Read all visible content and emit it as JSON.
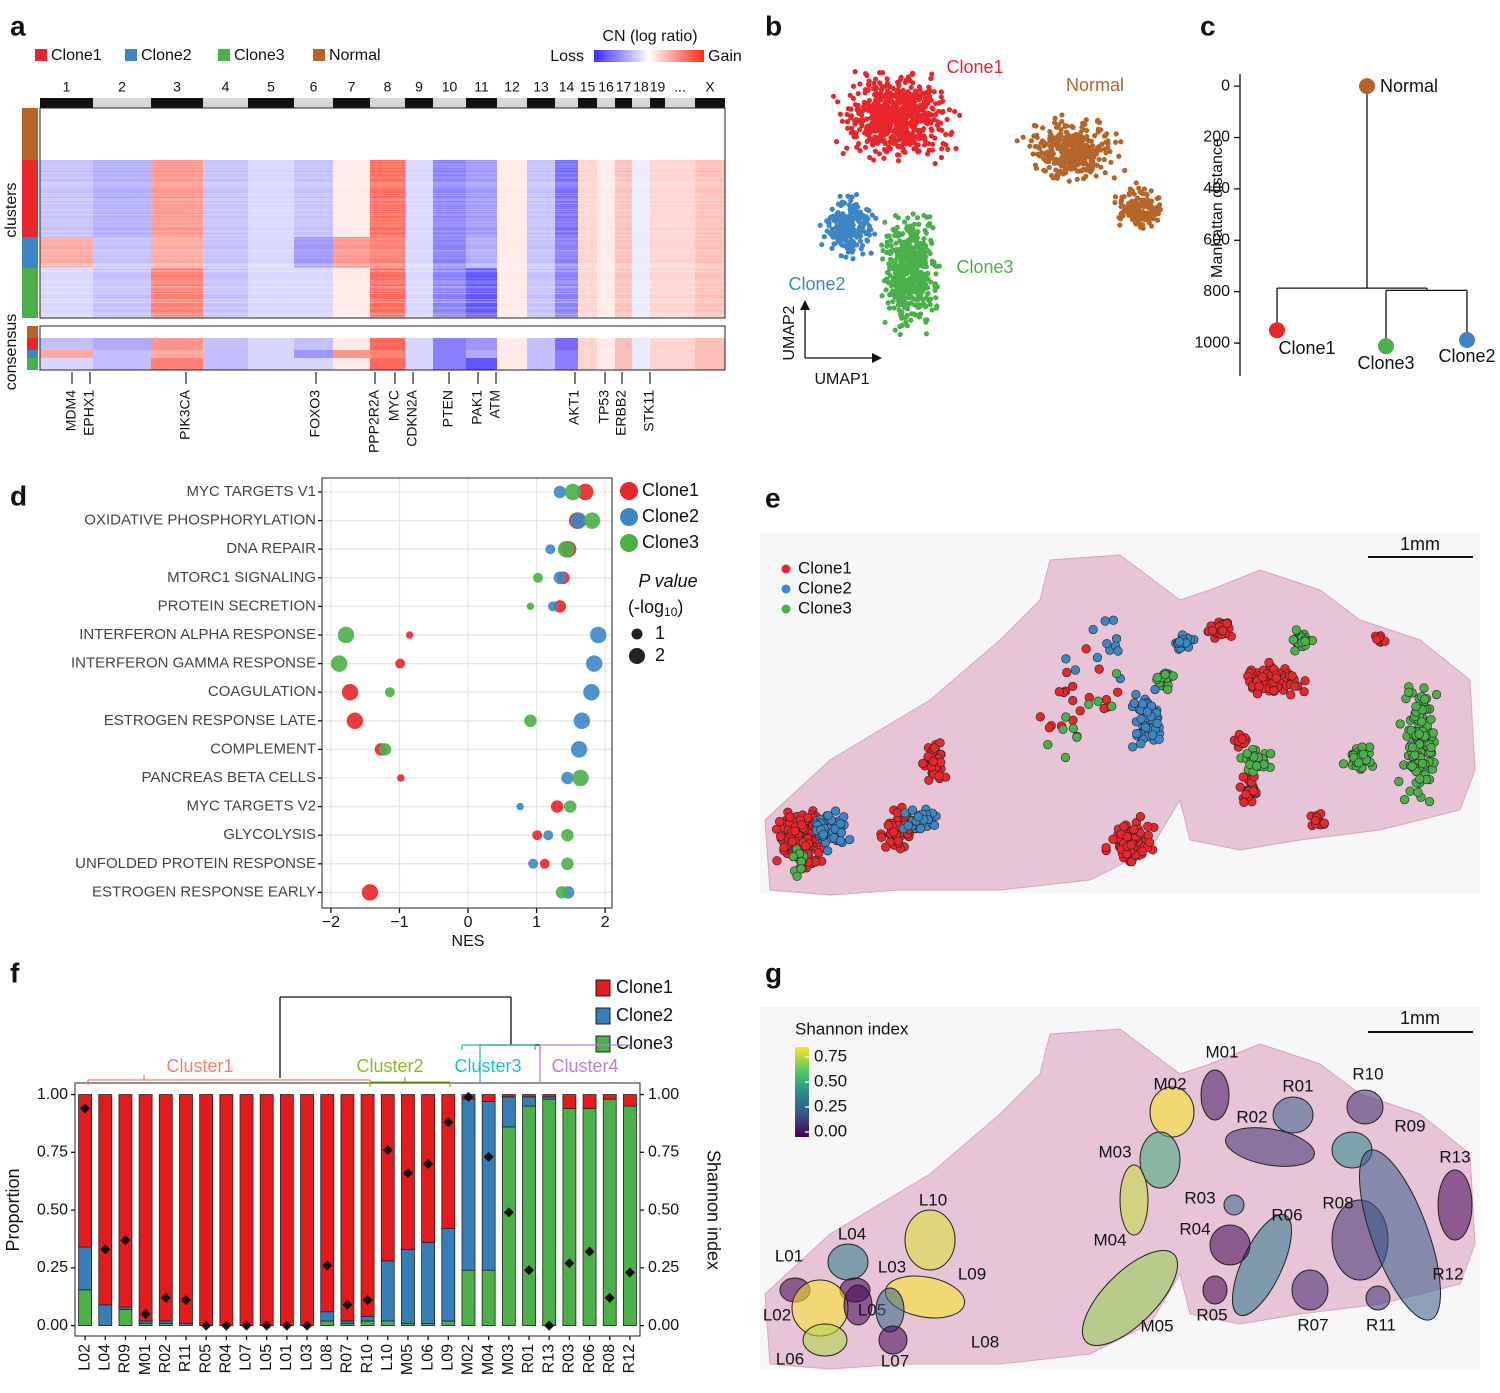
{
  "chart_data": [
    {
      "type": "heatmap",
      "label": "a",
      "series": [
        {
          "name": "Clone1",
          "color": "#e8262b",
          "values": [
            -0.3,
            -0.4,
            0.5,
            -0.3,
            -0.2,
            -0.3,
            0.1,
            0.7,
            -0.2,
            -0.6,
            -0.5,
            0.1,
            -0.3,
            -0.7,
            0.2,
            0.1,
            0.3,
            -0.1,
            0.2,
            0.2,
            0.3
          ]
        },
        {
          "name": "Clone2",
          "color": "#3d86c6",
          "values": [
            0.4,
            -0.3,
            0.4,
            -0.3,
            -0.2,
            -0.5,
            0.5,
            0.6,
            -0.2,
            -0.6,
            -0.4,
            0.1,
            -0.3,
            -0.6,
            0.2,
            0.1,
            0.3,
            -0.1,
            0.2,
            0.2,
            0.3
          ]
        },
        {
          "name": "Clone3",
          "color": "#4bb04a",
          "values": [
            -0.2,
            -0.3,
            0.6,
            -0.3,
            -0.2,
            -0.2,
            0.1,
            0.7,
            -0.2,
            -0.6,
            -0.8,
            0.1,
            -0.3,
            -0.6,
            0.2,
            0.1,
            0.3,
            -0.1,
            0.2,
            0.2,
            0.3
          ]
        },
        {
          "name": "Normal",
          "color": "#b5652a",
          "values": [
            0,
            0,
            0,
            0,
            0,
            0,
            0,
            0,
            0,
            0,
            0,
            0,
            0,
            0,
            0,
            0,
            0,
            0,
            0,
            0,
            0
          ]
        }
      ],
      "colorbar": {
        "title": "CN (log ratio)",
        "low": "Loss",
        "high": "Gain"
      },
      "categories": [
        "1",
        "2",
        "3",
        "4",
        "5",
        "6",
        "7",
        "8",
        "9",
        "10",
        "11",
        "12",
        "13",
        "14",
        "15",
        "16",
        "17",
        "18",
        "19",
        "...",
        "X"
      ],
      "row_labels": [
        "clusters",
        "consensus"
      ],
      "genes": [
        "MDM4",
        "EPHX1",
        "PIK3CA",
        "FOXO3",
        "PPP2R2A",
        "MYC",
        "CDKN2A",
        "PTEN",
        "PAK1",
        "ATM",
        "AKT1",
        "TP53",
        "ERBB2",
        "STK11"
      ]
    },
    {
      "type": "scatter",
      "label": "b",
      "xlabel": "UMAP1",
      "ylabel": "UMAP2",
      "series": [
        {
          "name": "Clone1",
          "color": "#e8262b"
        },
        {
          "name": "Clone2",
          "color": "#3d86c6"
        },
        {
          "name": "Clone3",
          "color": "#4bb04a"
        },
        {
          "name": "Normal",
          "color": "#b5652a"
        }
      ]
    },
    {
      "type": "dendrogram",
      "label": "c",
      "ylabel": "Manhattan distance",
      "ylim": [
        -47,
        1128
      ],
      "y_reversed": true,
      "yticks": [
        0,
        200,
        400,
        600,
        800,
        1000
      ],
      "leaves": [
        {
          "name": "Normal",
          "color": "#b5652a",
          "height": 0
        },
        {
          "name": "Clone1",
          "color": "#e8262b",
          "height": 950
        },
        {
          "name": "Clone3",
          "color": "#4bb04a",
          "height": 1012
        },
        {
          "name": "Clone2",
          "color": "#3d86c6",
          "height": 988
        }
      ],
      "merges": [
        786,
        795
      ]
    },
    {
      "type": "dotplot",
      "label": "d",
      "xlabel": "NES",
      "xlim": [
        -2.13,
        2.1
      ],
      "xticks": [
        {
          "value": -2,
          "label": "−2"
        },
        {
          "value": -1,
          "label": "−1"
        },
        0,
        1,
        2
      ],
      "categories": [
        "MYC TARGETS V1",
        "OXIDATIVE PHOSPHORYLATION",
        "DNA REPAIR",
        "MTORC1 SIGNALING",
        "PROTEIN SECRETION",
        "INTERFERON ALPHA RESPONSE",
        "INTERFERON GAMMA RESPONSE",
        "COAGULATION",
        "ESTROGEN RESPONSE LATE",
        "COMPLEMENT",
        "PANCREAS BETA CELLS",
        "MYC TARGETS V2",
        "GLYCOLYSIS",
        "UNFOLDED PROTEIN RESPONSE",
        "ESTROGEN RESPONSE EARLY"
      ],
      "series": [
        {
          "name": "Clone1",
          "color": "#e8262b",
          "values": [
            1.71,
            1.59,
            1.46,
            1.39,
            1.34,
            -0.85,
            -0.99,
            -1.72,
            -1.65,
            -1.27,
            -0.98,
            1.3,
            1.01,
            1.12,
            -1.43
          ],
          "sizes": [
            2.1,
            2.1,
            2.1,
            1.3,
            1.3,
            0.3,
            0.8,
            2.1,
            2.1,
            1.3,
            0.3,
            1.3,
            0.8,
            0.8,
            2.1
          ]
        },
        {
          "name": "Clone2",
          "color": "#3d86c6",
          "values": [
            1.34,
            1.61,
            1.2,
            1.34,
            1.24,
            1.9,
            1.84,
            1.8,
            1.66,
            1.62,
            1.45,
            0.76,
            1.17,
            0.95,
            1.46
          ],
          "sizes": [
            1.3,
            2.1,
            0.8,
            1.3,
            0.8,
            2.1,
            2.1,
            2.1,
            2.1,
            2.1,
            1.3,
            0.3,
            0.8,
            0.8,
            1.3
          ]
        },
        {
          "name": "Clone3",
          "color": "#4bb04a",
          "values": [
            1.53,
            1.81,
            1.43,
            1.02,
            0.91,
            -1.78,
            -1.88,
            -1.14,
            0.91,
            -1.21,
            1.64,
            1.49,
            1.45,
            1.45,
            1.37
          ],
          "sizes": [
            2.1,
            2.1,
            2.1,
            0.8,
            0.3,
            2.1,
            2.1,
            0.8,
            1.3,
            1.3,
            2.1,
            1.3,
            1.3,
            1.3,
            1.3
          ]
        }
      ],
      "size_title": "P value",
      "size_unit": "(-log",
      "size_unit_sub": "10",
      "size_unit_end": ")",
      "size_legend": [
        1,
        2
      ]
    },
    {
      "type": "image",
      "label": "e",
      "scalebar": "1mm",
      "series": [
        {
          "name": "Clone1",
          "color": "#e8262b"
        },
        {
          "name": "Clone2",
          "color": "#3d86c6"
        },
        {
          "name": "Clone3",
          "color": "#4bb04a"
        }
      ]
    },
    {
      "type": "bar",
      "label": "f",
      "ylabel": "Proportion",
      "y2label": "Shannon index",
      "ylim": [
        -0.045,
        1.05
      ],
      "y2lim": [
        -0.045,
        1.05
      ],
      "yticks": [
        {
          "value": 0,
          "label": "0.00"
        },
        {
          "value": 0.25,
          "label": "0.25"
        },
        {
          "value": 0.5,
          "label": "0.50"
        },
        {
          "value": 0.75,
          "label": "0.75"
        },
        {
          "value": 1,
          "label": "1.00"
        }
      ],
      "y2ticks": [
        {
          "value": 0,
          "label": "0.00"
        },
        {
          "value": 0.25,
          "label": "0.25"
        },
        {
          "value": 0.5,
          "label": "0.50"
        },
        {
          "value": 0.75,
          "label": "0.75"
        },
        {
          "value": 1,
          "label": "1.00"
        }
      ],
      "categories": [
        "L02",
        "L04",
        "R09",
        "M01",
        "R02",
        "R11",
        "R05",
        "R04",
        "L07",
        "L05",
        "L01",
        "L03",
        "L08",
        "R07",
        "R10",
        "L10",
        "M05",
        "L06",
        "L09",
        "M02",
        "M04",
        "M03",
        "R01",
        "R13",
        "R03",
        "R06",
        "R08",
        "R12"
      ],
      "series": [
        {
          "name": "Clone1",
          "color": "#e41a1c",
          "values": [
            0.66,
            0.91,
            0.92,
            0.98,
            0.98,
            0.99,
            1,
            1,
            1,
            1,
            1,
            1,
            0.94,
            0.98,
            0.96,
            0.72,
            0.67,
            0.64,
            0.58,
            0.02,
            0.03,
            0.01,
            0.01,
            0.01,
            0.06,
            0.06,
            0.02,
            0.05
          ]
        },
        {
          "name": "Clone2",
          "color": "#377eb8",
          "values": [
            0.185,
            0.09,
            0.01,
            0.01,
            0.01,
            0.01,
            0,
            0,
            0,
            0,
            0,
            0,
            0.04,
            0.01,
            0.02,
            0.26,
            0.32,
            0.35,
            0.4,
            0.74,
            0.73,
            0.13,
            0.04,
            0.01,
            0,
            0,
            0,
            0
          ]
        },
        {
          "name": "Clone3",
          "color": "#4daf4a",
          "values": [
            0.155,
            0,
            0.07,
            0.01,
            0.01,
            0,
            0,
            0,
            0,
            0,
            0,
            0,
            0.02,
            0.01,
            0.02,
            0.02,
            0.01,
            0.01,
            0.02,
            0.24,
            0.24,
            0.86,
            0.95,
            0.98,
            0.94,
            0.94,
            0.98,
            0.95
          ]
        }
      ],
      "shannon_index": [
        0.94,
        0.33,
        0.37,
        0.05,
        0.12,
        0.11,
        0,
        0,
        0,
        0,
        0,
        0,
        0.26,
        0.09,
        0.11,
        0.76,
        0.66,
        0.7,
        0.88,
        0.99,
        0.73,
        0.49,
        0.24,
        0,
        0.27,
        0.32,
        0.12,
        0.23
      ],
      "clusters": [
        {
          "name": "Cluster1",
          "color": "#f08070"
        },
        {
          "name": "Cluster2",
          "color": "#8cb81c"
        },
        {
          "name": "Cluster3",
          "color": "#1fbfc4"
        },
        {
          "name": "Cluster4",
          "color": "#b57ee8"
        }
      ]
    },
    {
      "type": "image",
      "label": "g",
      "scalebar": "1mm",
      "colorbar": {
        "title": "Shannon index",
        "ticks": [
          {
            "value": 0.75,
            "label": "0.75"
          },
          {
            "value": 0.5,
            "label": "0.50"
          },
          {
            "value": 0.25,
            "label": "0.25"
          },
          {
            "value": 0,
            "label": "0.00"
          }
        ]
      },
      "regions": [
        "M01",
        "M02",
        "R01",
        "R10",
        "R02",
        "R09",
        "M03",
        "R13",
        "R03",
        "R08",
        "R12",
        "R06",
        "R04",
        "M04",
        "M05",
        "L10",
        "L04",
        "L03",
        "L09",
        "L01",
        "L02",
        "L05",
        "L08",
        "L06",
        "L07",
        "R05",
        "R07",
        "R11"
      ]
    }
  ]
}
